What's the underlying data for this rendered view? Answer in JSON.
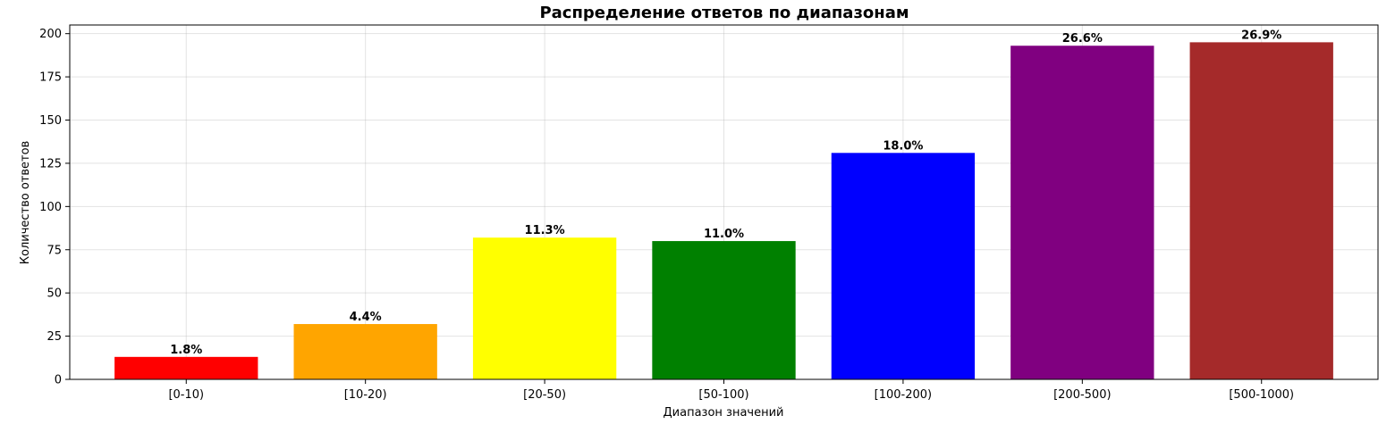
{
  "chart_data": {
    "type": "bar",
    "title": "Распределение ответов по диапазонам",
    "xlabel": "Диапазон значений",
    "ylabel": "Количество ответов",
    "categories": [
      "[0-10)",
      "[10-20)",
      "[20-50)",
      "[50-100)",
      "[100-200)",
      "[200-500)",
      "[500-1000)"
    ],
    "values": [
      13,
      32,
      82,
      80,
      131,
      193,
      195
    ],
    "data_labels": [
      "1.8%",
      "4.4%",
      "11.3%",
      "11.0%",
      "18.0%",
      "26.6%",
      "26.9%"
    ],
    "colors": [
      "#ff0000",
      "#ffa500",
      "#ffff00",
      "#008000",
      "#0000ff",
      "#800080",
      "#a52a2a"
    ],
    "ylim": [
      0,
      205
    ],
    "yticks": [
      0,
      25,
      50,
      75,
      100,
      125,
      150,
      175,
      200
    ],
    "grid": true,
    "legend": "none"
  }
}
